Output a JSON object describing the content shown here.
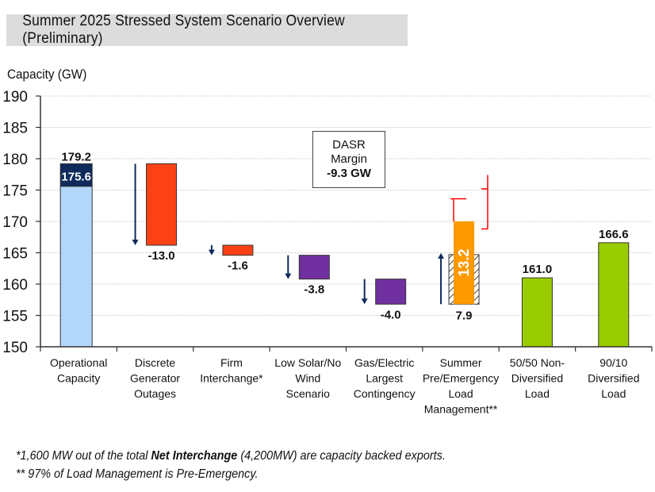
{
  "title": "Summer 2025 Stressed System Scenario Overview (Preliminary)",
  "chart_data": {
    "type": "bar",
    "subtype": "waterfall",
    "title": "Summer 2025 Stressed System Scenario Overview (Preliminary)",
    "ylabel": "Capacity (GW)",
    "xlabel": "",
    "ylim": [
      150,
      190
    ],
    "yticks": [
      150,
      155,
      160,
      165,
      170,
      175,
      180,
      185,
      190
    ],
    "grid": true,
    "categories": [
      [
        "Operational",
        "Capacity"
      ],
      [
        "Discrete",
        "Generator",
        "Outages"
      ],
      [
        "Firm",
        "Interchange*"
      ],
      [
        "Low Solar/No",
        "Wind",
        "Scenario"
      ],
      [
        "Gas/Electric",
        "Largest",
        "Contingency"
      ],
      [
        "Summer",
        "Pre/Emergency",
        "Load",
        "Management**"
      ],
      [
        "50/50 Non-",
        "Diversified",
        "Load"
      ],
      [
        "90/10",
        "Diversified",
        "Load"
      ]
    ],
    "bars": [
      {
        "name": "operational-capacity",
        "bottom": 150,
        "top": 179.2,
        "inner_top": 175.6,
        "label": "179.2",
        "inner_label": "175.6",
        "color": "#b3d7fb",
        "top_color": "#0f2a5c",
        "arrow": "none"
      },
      {
        "name": "discrete-generator-outages",
        "bottom": 166.2,
        "top": 179.2,
        "label": "-13.0",
        "color": "#fb4115",
        "arrow": "down"
      },
      {
        "name": "firm-interchange",
        "bottom": 164.6,
        "top": 166.2,
        "label": "-1.6",
        "color": "#fb4115",
        "arrow": "down"
      },
      {
        "name": "low-solar-no-wind",
        "bottom": 160.8,
        "top": 164.6,
        "label": "-3.8",
        "color": "#7030a0",
        "arrow": "down"
      },
      {
        "name": "gas-electric-contingency",
        "bottom": 156.8,
        "top": 160.8,
        "label": "-4.0",
        "color": "#7030a0",
        "arrow": "down"
      },
      {
        "name": "load-management",
        "bottom": 156.8,
        "top": 170.0,
        "hatched_top": 164.7,
        "label": "7.9",
        "inner_label": "13.2",
        "color": "#ff9900",
        "arrow": "up"
      },
      {
        "name": "load-50-50",
        "bottom": 150,
        "top": 161.0,
        "label": "161.0",
        "color": "#99cc00",
        "arrow": "none"
      },
      {
        "name": "load-90-10",
        "bottom": 150,
        "top": 166.6,
        "label": "166.6",
        "color": "#99cc00",
        "arrow": "none"
      }
    ],
    "reference_line": {
      "value": 174.0,
      "style": "dashed",
      "color": "#111111"
    },
    "annotation": {
      "lines": [
        "DASR",
        "Margin",
        "-9.3 GW"
      ]
    },
    "colors": {
      "arrow": "#0f2a5c",
      "bracket": "#ff0000",
      "grid": "#c8c8c8"
    }
  },
  "footnotes": {
    "line1_pre": "*1,600 MW out of the total ",
    "line1_bold": "Net Interchange",
    "line1_post": " (4,200MW) are capacity backed exports.",
    "line2": "** 97% of Load Management is Pre-Emergency."
  }
}
